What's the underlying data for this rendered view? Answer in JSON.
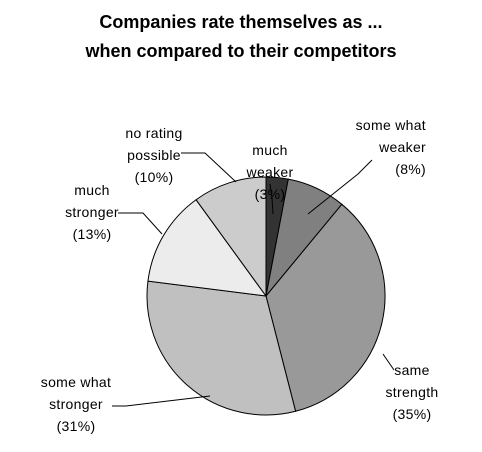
{
  "chart_data": {
    "type": "pie",
    "title": [
      "Companies rate themselves as ...",
      "when compared to their competitors"
    ],
    "slices": [
      {
        "label": [
          "much",
          "weaker"
        ],
        "percent_label": "(3%)",
        "value": 3,
        "color": "#333333"
      },
      {
        "label": [
          "some what",
          "weaker"
        ],
        "percent_label": "(8%)",
        "value": 8,
        "color": "#808080"
      },
      {
        "label": [
          "same",
          "strength"
        ],
        "percent_label": "(35%)",
        "value": 35,
        "color": "#999999"
      },
      {
        "label": [
          "some what",
          "stronger"
        ],
        "percent_label": "(31%)",
        "value": 31,
        "color": "#c0c0c0"
      },
      {
        "label": [
          "much",
          "stronger"
        ],
        "percent_label": "(13%)",
        "value": 13,
        "color": "#ececec"
      },
      {
        "label": [
          "no rating",
          "possible"
        ],
        "percent_label": "(10%)",
        "value": 10,
        "color": "#cccccc"
      }
    ],
    "start_angle": "12 o'clock",
    "direction": "clockwise",
    "legend": "none"
  }
}
